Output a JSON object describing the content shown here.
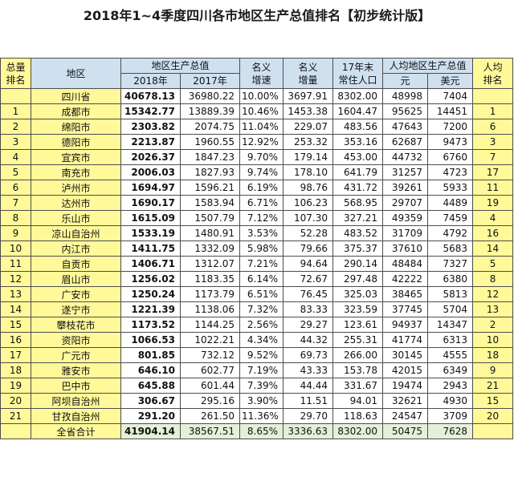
{
  "title": "2018年1~4季度四川各市地区生产总值排名【初步统计版】",
  "header": {
    "rank_line1": "总量",
    "rank_line2": "排名",
    "region": "地区",
    "gdp_group": "地区生产总值",
    "gdp_2018": "2018年",
    "gdp_2017": "2017年",
    "growth_line1": "名义",
    "growth_line2": "增速",
    "increase_line1": "名义",
    "increase_line2": "增量",
    "pop_line1": "17年末",
    "pop_line2": "常住人口",
    "per_capita_group": "人均地区生产总值",
    "yuan": "元",
    "usd": "美元",
    "pc_rank_line1": "人均",
    "pc_rank_line2": "排名"
  },
  "rows": [
    {
      "rank": "",
      "region": "四川省",
      "gdp2018": "40678.13",
      "gdp2017": "36980.22",
      "growth": "10.00%",
      "increase": "3697.91",
      "pop": "8302.00",
      "yuan": "48998",
      "usd": "7404",
      "pc_rank": ""
    },
    {
      "rank": "1",
      "region": "成都市",
      "gdp2018": "15342.77",
      "gdp2017": "13889.39",
      "growth": "10.46%",
      "increase": "1453.38",
      "pop": "1604.47",
      "yuan": "95625",
      "usd": "14451",
      "pc_rank": "1"
    },
    {
      "rank": "2",
      "region": "绵阳市",
      "gdp2018": "2303.82",
      "gdp2017": "2074.75",
      "growth": "11.04%",
      "increase": "229.07",
      "pop": "483.56",
      "yuan": "47643",
      "usd": "7200",
      "pc_rank": "6"
    },
    {
      "rank": "3",
      "region": "德阳市",
      "gdp2018": "2213.87",
      "gdp2017": "1960.55",
      "growth": "12.92%",
      "increase": "253.32",
      "pop": "353.16",
      "yuan": "62687",
      "usd": "9473",
      "pc_rank": "3"
    },
    {
      "rank": "4",
      "region": "宜宾市",
      "gdp2018": "2026.37",
      "gdp2017": "1847.23",
      "growth": "9.70%",
      "increase": "179.14",
      "pop": "453.00",
      "yuan": "44732",
      "usd": "6760",
      "pc_rank": "7"
    },
    {
      "rank": "5",
      "region": "南充市",
      "gdp2018": "2006.03",
      "gdp2017": "1827.93",
      "growth": "9.74%",
      "increase": "178.10",
      "pop": "641.79",
      "yuan": "31257",
      "usd": "4723",
      "pc_rank": "17"
    },
    {
      "rank": "6",
      "region": "泸州市",
      "gdp2018": "1694.97",
      "gdp2017": "1596.21",
      "growth": "6.19%",
      "increase": "98.76",
      "pop": "431.72",
      "yuan": "39261",
      "usd": "5933",
      "pc_rank": "11"
    },
    {
      "rank": "7",
      "region": "达州市",
      "gdp2018": "1690.17",
      "gdp2017": "1583.94",
      "growth": "6.71%",
      "increase": "106.23",
      "pop": "568.95",
      "yuan": "29707",
      "usd": "4489",
      "pc_rank": "19"
    },
    {
      "rank": "8",
      "region": "乐山市",
      "gdp2018": "1615.09",
      "gdp2017": "1507.79",
      "growth": "7.12%",
      "increase": "107.30",
      "pop": "327.21",
      "yuan": "49359",
      "usd": "7459",
      "pc_rank": "4"
    },
    {
      "rank": "9",
      "region": "凉山自治州",
      "gdp2018": "1533.19",
      "gdp2017": "1480.91",
      "growth": "3.53%",
      "increase": "52.28",
      "pop": "483.52",
      "yuan": "31709",
      "usd": "4792",
      "pc_rank": "16"
    },
    {
      "rank": "10",
      "region": "内江市",
      "gdp2018": "1411.75",
      "gdp2017": "1332.09",
      "growth": "5.98%",
      "increase": "79.66",
      "pop": "375.37",
      "yuan": "37610",
      "usd": "5683",
      "pc_rank": "14"
    },
    {
      "rank": "11",
      "region": "自贡市",
      "gdp2018": "1406.71",
      "gdp2017": "1312.07",
      "growth": "7.21%",
      "increase": "94.64",
      "pop": "290.14",
      "yuan": "48484",
      "usd": "7327",
      "pc_rank": "5"
    },
    {
      "rank": "12",
      "region": "眉山市",
      "gdp2018": "1256.02",
      "gdp2017": "1183.35",
      "growth": "6.14%",
      "increase": "72.67",
      "pop": "297.48",
      "yuan": "42222",
      "usd": "6380",
      "pc_rank": "8"
    },
    {
      "rank": "13",
      "region": "广安市",
      "gdp2018": "1250.24",
      "gdp2017": "1173.79",
      "growth": "6.51%",
      "increase": "76.45",
      "pop": "325.03",
      "yuan": "38465",
      "usd": "5813",
      "pc_rank": "12"
    },
    {
      "rank": "14",
      "region": "遂宁市",
      "gdp2018": "1221.39",
      "gdp2017": "1138.06",
      "growth": "7.32%",
      "increase": "83.33",
      "pop": "323.59",
      "yuan": "37745",
      "usd": "5704",
      "pc_rank": "13"
    },
    {
      "rank": "15",
      "region": "攀枝花市",
      "gdp2018": "1173.52",
      "gdp2017": "1144.25",
      "growth": "2.56%",
      "increase": "29.27",
      "pop": "123.61",
      "yuan": "94937",
      "usd": "14347",
      "pc_rank": "2"
    },
    {
      "rank": "16",
      "region": "资阳市",
      "gdp2018": "1066.53",
      "gdp2017": "1022.21",
      "growth": "4.34%",
      "increase": "44.32",
      "pop": "255.31",
      "yuan": "41774",
      "usd": "6313",
      "pc_rank": "10"
    },
    {
      "rank": "17",
      "region": "广元市",
      "gdp2018": "801.85",
      "gdp2017": "732.12",
      "growth": "9.52%",
      "increase": "69.73",
      "pop": "266.00",
      "yuan": "30145",
      "usd": "4555",
      "pc_rank": "18"
    },
    {
      "rank": "18",
      "region": "雅安市",
      "gdp2018": "646.10",
      "gdp2017": "602.77",
      "growth": "7.19%",
      "increase": "43.33",
      "pop": "153.78",
      "yuan": "42015",
      "usd": "6349",
      "pc_rank": "9"
    },
    {
      "rank": "19",
      "region": "巴中市",
      "gdp2018": "645.88",
      "gdp2017": "601.44",
      "growth": "7.39%",
      "increase": "44.44",
      "pop": "331.67",
      "yuan": "19474",
      "usd": "2943",
      "pc_rank": "21"
    },
    {
      "rank": "20",
      "region": "阿坝自治州",
      "gdp2018": "306.67",
      "gdp2017": "295.16",
      "growth": "3.90%",
      "increase": "11.51",
      "pop": "94.01",
      "yuan": "32621",
      "usd": "4930",
      "pc_rank": "15"
    },
    {
      "rank": "21",
      "region": "甘孜自治州",
      "gdp2018": "291.20",
      "gdp2017": "261.50",
      "growth": "11.36%",
      "increase": "29.70",
      "pop": "118.63",
      "yuan": "24547",
      "usd": "3709",
      "pc_rank": "20"
    }
  ],
  "total": {
    "rank": "",
    "region": "全省合计",
    "gdp2018": "41904.14",
    "gdp2017": "38567.51",
    "growth": "8.65%",
    "increase": "3336.63",
    "pop": "8302.00",
    "yuan": "50475",
    "usd": "7628",
    "pc_rank": ""
  },
  "colors": {
    "header_bg": "#cfe0ef",
    "highlight_bg": "#fff99a",
    "border": "#4d4d4d"
  }
}
